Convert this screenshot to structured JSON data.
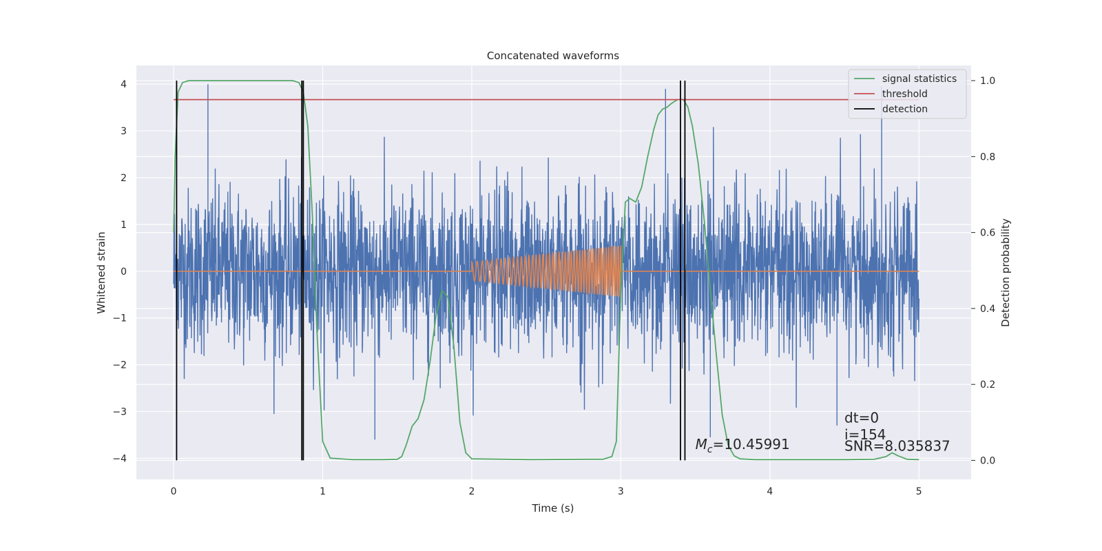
{
  "chart_data": {
    "type": "line",
    "title": "Concatenated waveforms",
    "xlabel": "Time (s)",
    "ylabel": "Whitened strain",
    "ylabel_right": "Detection probability",
    "xlim": [
      -0.25,
      5.35
    ],
    "ylim": [
      -4.45,
      4.4
    ],
    "ylim_right": [
      -0.05,
      1.04
    ],
    "xticks": [
      "0",
      "1",
      "2",
      "3",
      "4",
      "5"
    ],
    "yticks": [
      "−4",
      "−3",
      "−2",
      "−1",
      "0",
      "1",
      "2",
      "3",
      "4"
    ],
    "yticks_right": [
      "0.0",
      "0.2",
      "0.4",
      "0.6",
      "0.8",
      "1.0"
    ],
    "grid": true,
    "legend_position": "top-right",
    "legend": [
      {
        "label": "signal statistics",
        "color": "#55a868"
      },
      {
        "label": "threshold",
        "color": "#c44e52"
      },
      {
        "label": "detection",
        "color": "#000000"
      }
    ],
    "series": [
      {
        "color": "#4c72b0",
        "axis": "left",
        "x_range": [
          0,
          5
        ],
        "kind": "noise",
        "typical_amplitude": 1.4,
        "max_value": 4.0,
        "min_value": -3.6
      },
      {
        "color": "#dd8452",
        "axis": "left",
        "x_range": [
          0,
          5
        ],
        "kind": "chirp",
        "chirp_start": 2.0,
        "chirp_end": 3.0,
        "amplitude_start": 0.2,
        "amplitude_end": 0.55,
        "cycles": 45
      },
      {
        "name": "signal statistics",
        "color": "#55a868",
        "axis": "right",
        "x": [
          0.0,
          0.01,
          0.03,
          0.06,
          0.1,
          0.5,
          0.8,
          0.84,
          0.87,
          0.9,
          0.93,
          0.96,
          0.98,
          1.0,
          1.05,
          1.2,
          1.4,
          1.5,
          1.53,
          1.56,
          1.6,
          1.64,
          1.68,
          1.72,
          1.76,
          1.8,
          1.84,
          1.88,
          1.92,
          1.96,
          2.0,
          2.4,
          2.78,
          2.88,
          2.94,
          2.97,
          3.0,
          3.03,
          3.06,
          3.1,
          3.14,
          3.18,
          3.22,
          3.25,
          3.28,
          3.31,
          3.34,
          3.38,
          3.42,
          3.45,
          3.48,
          3.52,
          3.56,
          3.6,
          3.64,
          3.68,
          3.72,
          3.76,
          3.8,
          3.9,
          4.2,
          4.5,
          4.7,
          4.78,
          4.82,
          4.86,
          4.92,
          5.0
        ],
        "y": [
          0.6,
          0.8,
          0.97,
          0.995,
          1.0,
          1.0,
          1.0,
          0.995,
          0.97,
          0.88,
          0.65,
          0.35,
          0.2,
          0.05,
          0.006,
          0.002,
          0.002,
          0.003,
          0.01,
          0.04,
          0.09,
          0.11,
          0.16,
          0.26,
          0.38,
          0.447,
          0.43,
          0.3,
          0.1,
          0.02,
          0.004,
          0.002,
          0.003,
          0.003,
          0.01,
          0.05,
          0.45,
          0.68,
          0.69,
          0.68,
          0.72,
          0.8,
          0.87,
          0.91,
          0.925,
          0.93,
          0.94,
          0.95,
          0.95,
          0.93,
          0.88,
          0.78,
          0.63,
          0.45,
          0.28,
          0.12,
          0.04,
          0.012,
          0.004,
          0.002,
          0.002,
          0.002,
          0.003,
          0.01,
          0.02,
          0.012,
          0.003,
          0.002
        ]
      },
      {
        "name": "threshold",
        "color": "#c44e52",
        "axis": "right",
        "x": [
          0,
          5
        ],
        "y": [
          0.95,
          0.95
        ]
      },
      {
        "name": "detection",
        "color": "#000000",
        "axis": "right",
        "vlines_x": [
          0.02,
          0.86,
          0.87,
          3.4,
          3.43
        ]
      }
    ],
    "annotations": [
      {
        "text": "M_c=10.45991",
        "x": 3.5,
        "y": 0.03
      },
      {
        "text": "dt=0",
        "x": 4.5,
        "y": 0.1
      },
      {
        "text": "i=154",
        "x": 4.5,
        "y": 0.055
      },
      {
        "text": "SNR=8.035837",
        "x": 4.5,
        "y": 0.025
      }
    ]
  }
}
